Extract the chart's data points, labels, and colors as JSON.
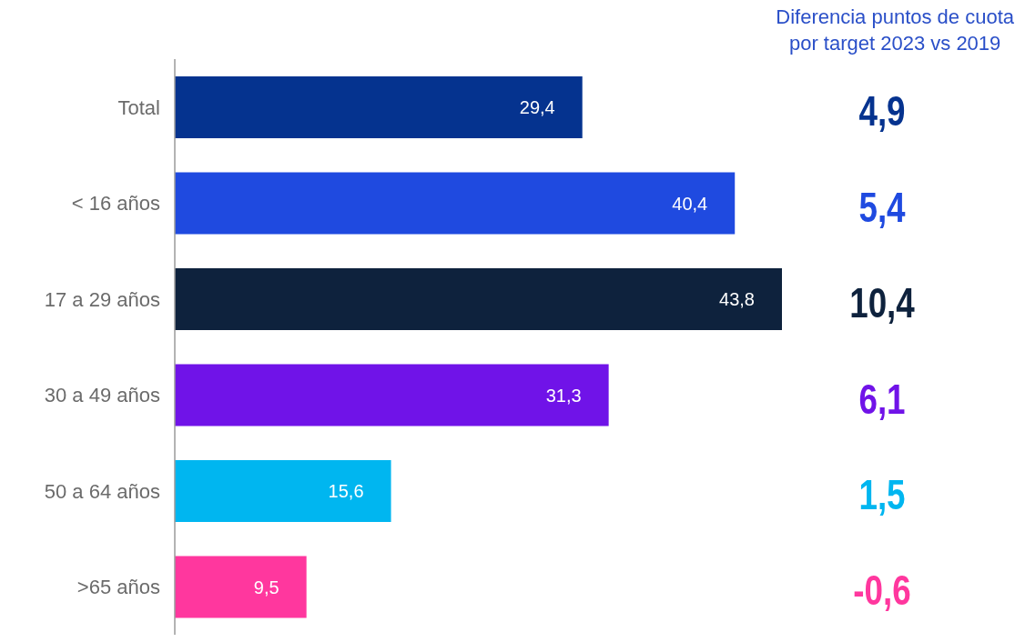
{
  "chart_data": {
    "type": "bar",
    "orientation": "horizontal",
    "title": "Diferencia puntos de cuota\npor target 2023 vs 2019",
    "categories": [
      "Total",
      "< 16 años",
      "17 a 29 años",
      "30 a 49 años",
      "50 a 64 años",
      ">65 años"
    ],
    "values": [
      29.4,
      40.4,
      43.8,
      31.3,
      15.6,
      9.5
    ],
    "colors": [
      "#05338f",
      "#1f4ae0",
      "#0e223d",
      "#7013e8",
      "#00b6f0",
      "#ff379e"
    ],
    "value_labels": [
      "29,4",
      "40,4",
      "43,8",
      "31,3",
      "15,6",
      "9,5"
    ],
    "annotations": [
      "4,9",
      "5,4",
      "10,4",
      "6,1",
      "1,5",
      "-0,6"
    ],
    "grid": false,
    "legend": false
  }
}
